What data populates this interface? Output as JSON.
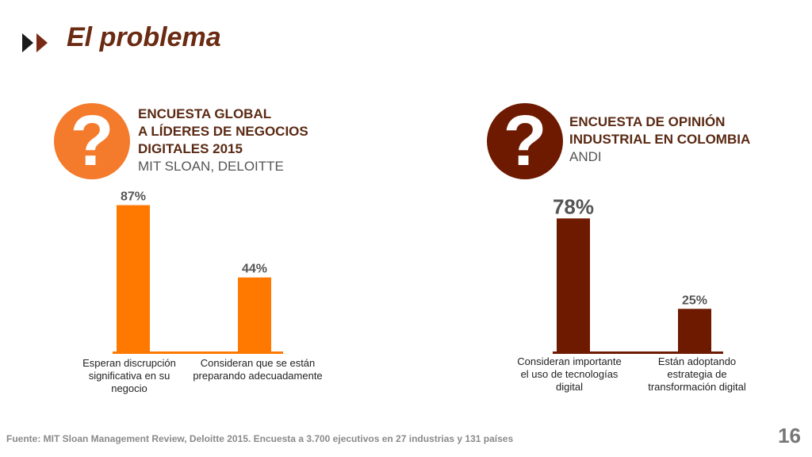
{
  "title": "El problema",
  "colors": {
    "orange": "#ff7800",
    "brown": "#6e1a00",
    "title": "#6b2a12"
  },
  "icons": {
    "title_icon": "double-play-icon",
    "survey_icon": "question-mark-icon"
  },
  "surveys": [
    {
      "heading_lines": [
        "ENCUESTA GLOBAL",
        "A LÍDERES DE NEGOCIOS",
        "DIGITALES 2015"
      ],
      "source": "MIT SLOAN, DELOITTE",
      "question_mark": "?"
    },
    {
      "heading_lines": [
        "ENCUESTA DE OPINIÓN",
        "INDUSTRIAL EN COLOMBIA"
      ],
      "source": "ANDI",
      "question_mark": "?"
    }
  ],
  "chart_data": [
    {
      "type": "bar",
      "categories": [
        "Esperan discrupción significativa en su negocio",
        "Consideran que se están preparando adecuadamente"
      ],
      "values": [
        87,
        44
      ],
      "data_labels": [
        "87%",
        "44%"
      ],
      "ylim": [
        0,
        100
      ],
      "color": "#ff7800"
    },
    {
      "type": "bar",
      "categories": [
        "Consideran importante el uso de tecnologías digital",
        "Están adoptando estrategia de transformación digital"
      ],
      "values": [
        78,
        25
      ],
      "data_labels": [
        "78%",
        "25%"
      ],
      "ylim": [
        0,
        100
      ],
      "color": "#6e1a00"
    }
  ],
  "category_label_lines": [
    [
      [
        "Esperan discrupción",
        "significativa en su",
        "negocio"
      ],
      [
        "Consideran que se están",
        "preparando adecuadamente"
      ]
    ],
    [
      [
        "Consideran importante",
        "el uso de tecnologías",
        "digital"
      ],
      [
        "Están adoptando",
        "estrategia de",
        "transformación digital"
      ]
    ]
  ],
  "footer": "Fuente: MIT Sloan Management Review, Deloitte 2015. Encuesta a 3.700 ejecutivos en 27 industrias y 131 países",
  "page_number": "16"
}
